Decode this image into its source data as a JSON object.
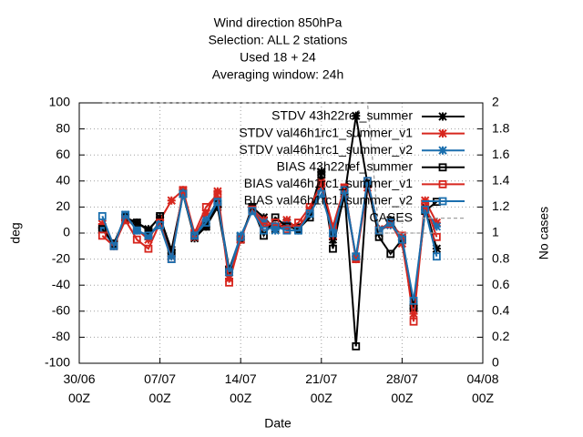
{
  "chart_data": {
    "type": "line",
    "title": [
      "Wind direction 850hPa",
      "Selection: ALL      2 stations",
      "Used  18  + 24",
      "Averaging window: 24h"
    ],
    "x_label": "Date",
    "y_label": "deg",
    "y2_label": "No cases",
    "x": [
      2,
      3,
      4,
      5,
      6,
      7,
      8,
      9,
      10,
      11,
      12,
      13,
      14,
      15,
      16,
      17,
      18,
      19,
      20,
      21,
      22,
      23,
      24,
      25,
      26,
      27,
      28,
      29,
      30,
      31
    ],
    "xlim": [
      0,
      35
    ],
    "xticks": [
      {
        "value": 0,
        "label": "30/06 00Z"
      },
      {
        "value": 7,
        "label": "07/07 00Z"
      },
      {
        "value": 14,
        "label": "14/07 00Z"
      },
      {
        "value": 21,
        "label": "21/07 00Z"
      },
      {
        "value": 28,
        "label": "28/07 00Z"
      },
      {
        "value": 35,
        "label": "04/08 00Z"
      }
    ],
    "ylim": [
      -100,
      100
    ],
    "yticks": [
      -100,
      -80,
      -60,
      -40,
      -20,
      0,
      20,
      40,
      60,
      80,
      100
    ],
    "y2lim": [
      0,
      2
    ],
    "y2ticks": [
      0,
      0.2,
      0.4,
      0.6,
      0.8,
      1,
      1.2,
      1.4,
      1.6,
      1.8,
      2
    ],
    "grid": true,
    "legend": "upper right",
    "series": [
      {
        "name": "STDV 43h22ref_summer",
        "color": "#000000",
        "marker": "star",
        "values": [
          4,
          -9,
          10,
          8,
          3,
          12,
          -13,
          30,
          -4,
          5,
          20,
          -30,
          -5,
          20,
          12,
          3,
          8,
          5,
          15,
          47,
          -5,
          28,
          90,
          38,
          0,
          10,
          -5,
          -58,
          20,
          -12
        ]
      },
      {
        "name": "STDV val46h1rc1_summer_v1",
        "color": "#d7261e",
        "marker": "star",
        "values": [
          7,
          -8,
          12,
          3,
          -5,
          10,
          25,
          33,
          -3,
          15,
          32,
          -35,
          -3,
          18,
          10,
          5,
          10,
          3,
          18,
          40,
          -2,
          35,
          -20,
          35,
          3,
          8,
          -8,
          -62,
          25,
          8
        ]
      },
      {
        "name": "STDV val46h1rc1_summer_v2",
        "color": "#1b6fae",
        "marker": "star",
        "values": [
          3,
          -10,
          14,
          2,
          -2,
          8,
          -18,
          31,
          -2,
          10,
          25,
          -28,
          -2,
          17,
          8,
          2,
          6,
          2,
          14,
          35,
          0,
          30,
          -18,
          38,
          2,
          6,
          -3,
          -55,
          18,
          5
        ]
      },
      {
        "name": "BIAS 43h22ref_summer",
        "color": "#000000",
        "marker": "square",
        "values": [
          3,
          -8,
          12,
          8,
          2,
          13,
          -15,
          30,
          -2,
          5,
          22,
          -28,
          -5,
          20,
          -2,
          12,
          5,
          3,
          12,
          45,
          -12,
          32,
          -87,
          38,
          -3,
          -16,
          -5,
          -57,
          17,
          24
        ]
      },
      {
        "name": "BIAS val46h1rc1_summer_v1",
        "color": "#d7261e",
        "marker": "square",
        "values": [
          -2,
          -10,
          10,
          -5,
          -12,
          8,
          -20,
          33,
          0,
          20,
          30,
          -38,
          -5,
          18,
          5,
          8,
          3,
          8,
          20,
          38,
          5,
          35,
          -20,
          40,
          2,
          7,
          -2,
          -68,
          22,
          -3
        ]
      },
      {
        "name": "BIAS val46h1rc1_summer_v2",
        "color": "#1b6fae",
        "marker": "square",
        "values": [
          13,
          -10,
          14,
          2,
          -2,
          6,
          -20,
          30,
          -2,
          8,
          24,
          -30,
          -3,
          17,
          2,
          5,
          2,
          2,
          15,
          30,
          0,
          33,
          -18,
          40,
          2,
          8,
          -5,
          -52,
          18,
          -18
        ]
      },
      {
        "name": "CASES",
        "color": "#a0a0a0",
        "marker": "none",
        "dashed": true,
        "axis": "y2",
        "values": [
          2,
          2,
          2,
          2,
          2,
          2,
          2,
          2,
          2,
          2,
          2,
          2,
          2,
          2,
          2,
          2,
          2,
          2,
          2,
          2,
          2,
          2,
          2,
          2,
          1,
          1,
          1,
          1,
          1,
          1
        ]
      }
    ]
  }
}
